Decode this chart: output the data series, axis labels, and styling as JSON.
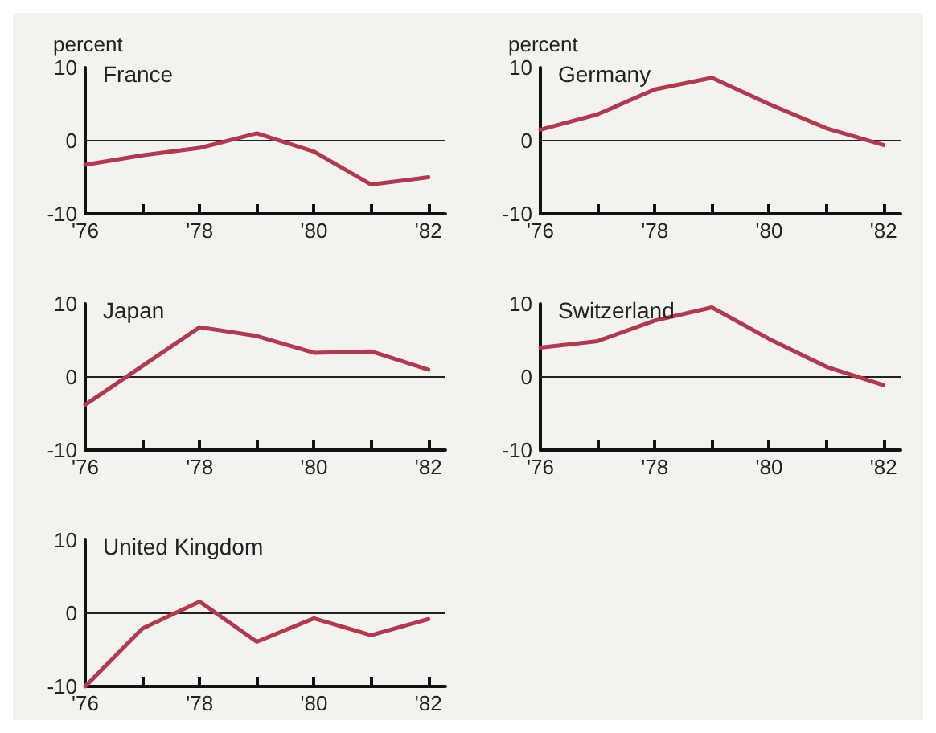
{
  "chart_data": [
    {
      "type": "line",
      "title": "France",
      "ylabel": "percent",
      "x": [
        1976,
        1977,
        1978,
        1979,
        1980,
        1981,
        1982
      ],
      "xlim": [
        1976,
        1982.3
      ],
      "xticks": [
        {
          "value": 1976,
          "label": "'76"
        },
        {
          "value": 1977,
          "label": null
        },
        {
          "value": 1978,
          "label": "'78"
        },
        {
          "value": 1979,
          "label": null
        },
        {
          "value": 1980,
          "label": "'80"
        },
        {
          "value": 1981,
          "label": null
        },
        {
          "value": 1982,
          "label": "'82"
        }
      ],
      "ylim": [
        -10,
        10
      ],
      "yticks": [
        -10,
        0,
        10
      ],
      "grid": false,
      "ref_lines": [
        {
          "axis": "y",
          "value": 0
        }
      ],
      "series": [
        {
          "color": "#b03a50",
          "values": [
            -3.3,
            -2,
            -1,
            1,
            -1.5,
            -6,
            -5
          ]
        }
      ]
    },
    {
      "type": "line",
      "title": "Germany",
      "ylabel": "percent",
      "x": [
        1976,
        1977,
        1978,
        1979,
        1980,
        1981,
        1982
      ],
      "xlim": [
        1976,
        1982.3
      ],
      "xticks": [
        {
          "value": 1976,
          "label": "'76"
        },
        {
          "value": 1977,
          "label": null
        },
        {
          "value": 1978,
          "label": "'78"
        },
        {
          "value": 1979,
          "label": null
        },
        {
          "value": 1980,
          "label": "'80"
        },
        {
          "value": 1981,
          "label": null
        },
        {
          "value": 1982,
          "label": "'82"
        }
      ],
      "ylim": [
        -10,
        10
      ],
      "yticks": [
        -10,
        0,
        10
      ],
      "grid": false,
      "ref_lines": [
        {
          "axis": "y",
          "value": 0
        }
      ],
      "series": [
        {
          "color": "#b03a50",
          "values": [
            1.5,
            3.6,
            7,
            8.6,
            5,
            1.7,
            -0.6
          ]
        }
      ]
    },
    {
      "type": "line",
      "title": "Japan",
      "x": [
        1976,
        1977,
        1978,
        1979,
        1980,
        1981,
        1982
      ],
      "xlim": [
        1976,
        1982.3
      ],
      "xticks": [
        {
          "value": 1976,
          "label": "'76"
        },
        {
          "value": 1977,
          "label": null
        },
        {
          "value": 1978,
          "label": "'78"
        },
        {
          "value": 1979,
          "label": null
        },
        {
          "value": 1980,
          "label": "'80"
        },
        {
          "value": 1981,
          "label": null
        },
        {
          "value": 1982,
          "label": "'82"
        }
      ],
      "ylim": [
        -10,
        10
      ],
      "yticks": [
        -10,
        0,
        10
      ],
      "grid": false,
      "ref_lines": [
        {
          "axis": "y",
          "value": 0
        }
      ],
      "series": [
        {
          "color": "#b03a50",
          "values": [
            -3.8,
            1.5,
            6.8,
            5.6,
            3.3,
            3.5,
            1
          ]
        }
      ]
    },
    {
      "type": "line",
      "title": "Switzerland",
      "x": [
        1976,
        1977,
        1978,
        1979,
        1980,
        1981,
        1982
      ],
      "xlim": [
        1976,
        1982.3
      ],
      "xticks": [
        {
          "value": 1976,
          "label": "'76"
        },
        {
          "value": 1977,
          "label": null
        },
        {
          "value": 1978,
          "label": "'78"
        },
        {
          "value": 1979,
          "label": null
        },
        {
          "value": 1980,
          "label": "'80"
        },
        {
          "value": 1981,
          "label": null
        },
        {
          "value": 1982,
          "label": "'82"
        }
      ],
      "ylim": [
        -10,
        10
      ],
      "yticks": [
        -10,
        0,
        10
      ],
      "grid": false,
      "ref_lines": [
        {
          "axis": "y",
          "value": 0
        }
      ],
      "series": [
        {
          "color": "#b03a50",
          "values": [
            4,
            4.9,
            7.7,
            9.5,
            5.2,
            1.4,
            -1.1
          ]
        }
      ]
    },
    {
      "type": "line",
      "title": "United Kingdom",
      "x": [
        1976,
        1977,
        1978,
        1979,
        1980,
        1981,
        1982
      ],
      "xlim": [
        1976,
        1982.3
      ],
      "xticks": [
        {
          "value": 1976,
          "label": "'76"
        },
        {
          "value": 1977,
          "label": null
        },
        {
          "value": 1978,
          "label": "'78"
        },
        {
          "value": 1979,
          "label": null
        },
        {
          "value": 1980,
          "label": "'80"
        },
        {
          "value": 1981,
          "label": null
        },
        {
          "value": 1982,
          "label": "'82"
        }
      ],
      "ylim": [
        -10,
        10
      ],
      "yticks": [
        -10,
        0,
        10
      ],
      "grid": false,
      "ref_lines": [
        {
          "axis": "y",
          "value": 0
        }
      ],
      "series": [
        {
          "color": "#b03a50",
          "values": [
            -10,
            -2.1,
            1.6,
            -3.9,
            -0.7,
            -3,
            -0.8
          ]
        }
      ]
    }
  ]
}
